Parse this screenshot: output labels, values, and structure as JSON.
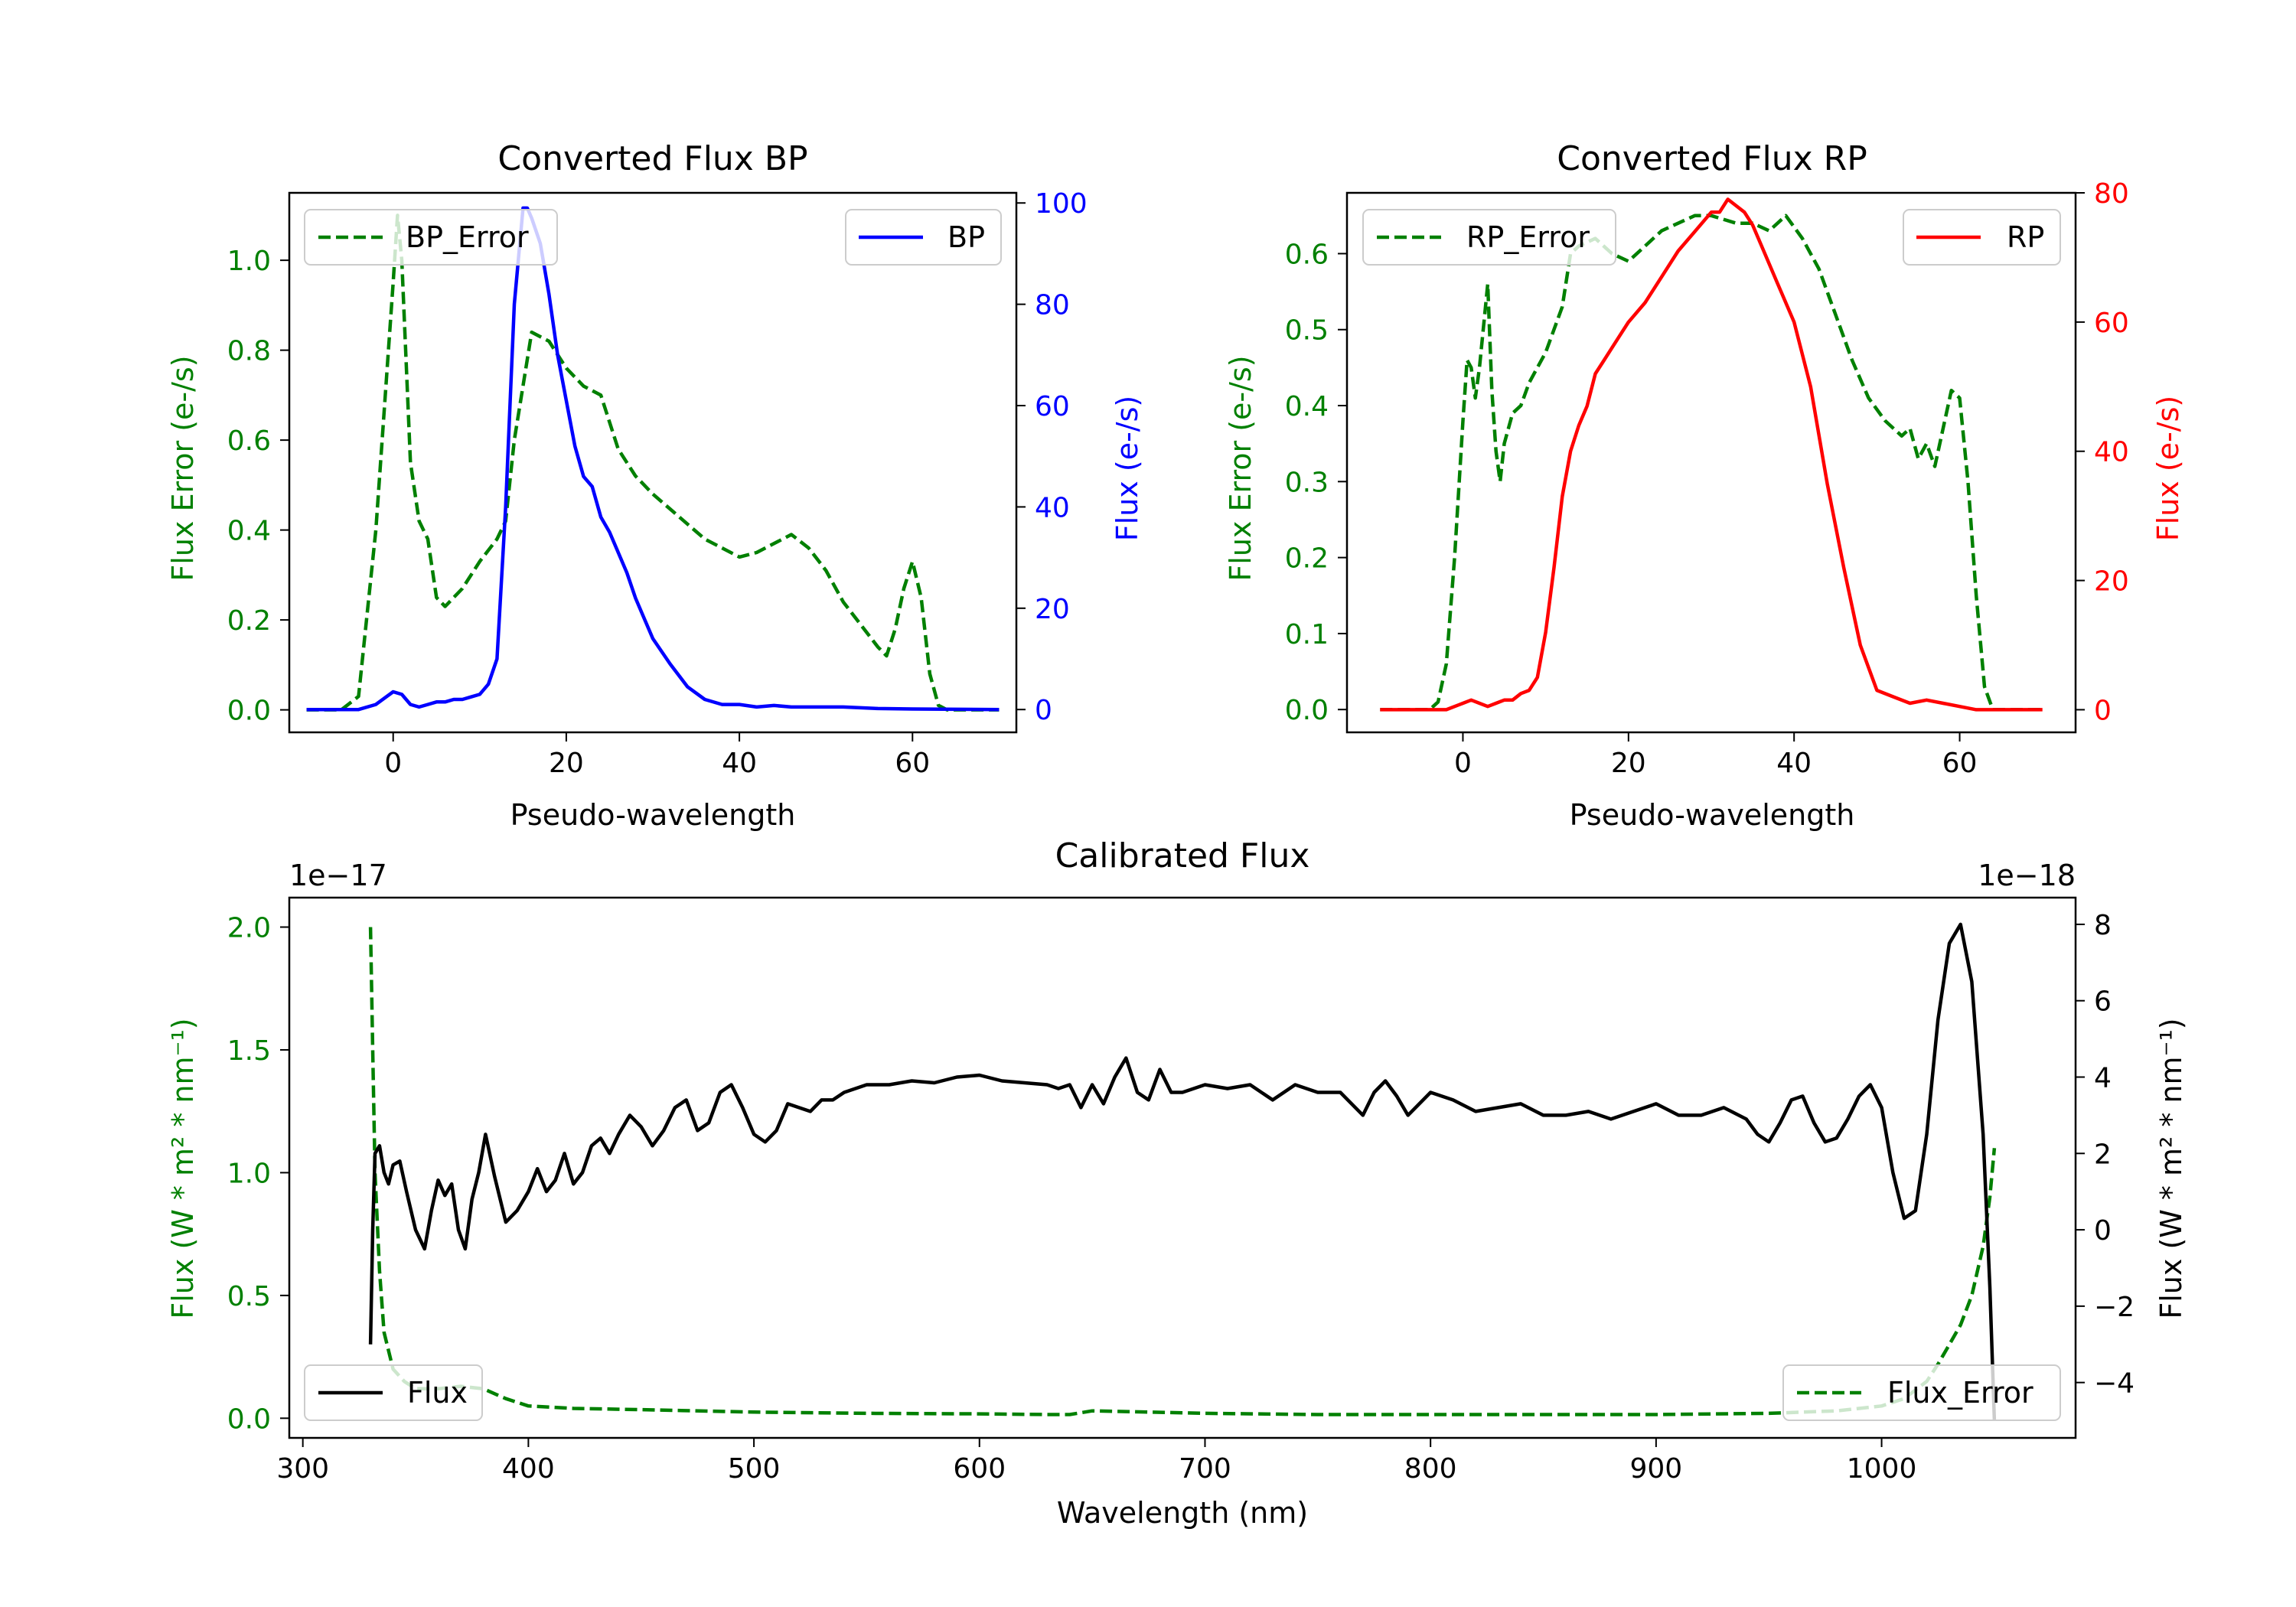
{
  "colors": {
    "green": "#008000",
    "blue": "#0000ff",
    "red": "#ff0000",
    "black": "#000000"
  },
  "chart_data": [
    {
      "id": "bp",
      "type": "line",
      "title": "Converted Flux BP",
      "xlabel": "Pseudo-wavelength",
      "ylabel_left": "Flux Error (e-/s)",
      "ylabel_right": "Flux (e-/s)",
      "xlim": [
        -12,
        72
      ],
      "ylim_left": [
        -0.05,
        1.15
      ],
      "ylim_right": [
        -4.5,
        102
      ],
      "xticks": [
        0,
        20,
        40,
        60
      ],
      "yticks_left": [
        0.0,
        0.2,
        0.4,
        0.6,
        0.8,
        1.0
      ],
      "yticks_left_labels": [
        "0.0",
        "0.2",
        "0.4",
        "0.6",
        "0.8",
        "1.0"
      ],
      "yticks_right": [
        0,
        20,
        40,
        60,
        80,
        100
      ],
      "legend_left": {
        "label": "BP_Error",
        "position": "upper-left"
      },
      "legend_right": {
        "label": "BP",
        "position": "upper-right"
      },
      "series": [
        {
          "name": "BP_Error",
          "axis": "left",
          "color": "#008000",
          "dash": true,
          "x": [
            -10,
            -6,
            -4,
            -2,
            0,
            0.5,
            1,
            2,
            3,
            4,
            5,
            6,
            8,
            10,
            12,
            13,
            14,
            16,
            18,
            20,
            22,
            24,
            26,
            28,
            30,
            33,
            36,
            38,
            40,
            42,
            44,
            46,
            48,
            50,
            52,
            54,
            56,
            57,
            58,
            59,
            60,
            61,
            62,
            63,
            64,
            66,
            70
          ],
          "y": [
            0.0,
            0.0,
            0.03,
            0.4,
            0.95,
            1.1,
            1.0,
            0.55,
            0.42,
            0.38,
            0.25,
            0.23,
            0.27,
            0.33,
            0.38,
            0.42,
            0.6,
            0.84,
            0.82,
            0.76,
            0.72,
            0.7,
            0.58,
            0.52,
            0.48,
            0.43,
            0.38,
            0.36,
            0.34,
            0.35,
            0.37,
            0.39,
            0.36,
            0.31,
            0.24,
            0.19,
            0.14,
            0.12,
            0.18,
            0.27,
            0.33,
            0.25,
            0.08,
            0.01,
            0.0,
            0.0,
            0.0
          ]
        },
        {
          "name": "BP",
          "axis": "right",
          "color": "#0000ff",
          "dash": false,
          "x": [
            -10,
            -4,
            -2,
            0,
            1,
            2,
            3,
            4,
            5,
            6,
            7,
            8,
            9,
            10,
            11,
            12,
            13,
            14,
            15,
            15.5,
            16,
            17,
            18,
            19,
            20,
            21,
            22,
            23,
            24,
            25,
            26,
            27,
            28,
            29,
            30,
            32,
            34,
            36,
            38,
            40,
            42,
            44,
            46,
            48,
            52,
            56,
            60,
            70
          ],
          "y": [
            0,
            0,
            1,
            3.5,
            3,
            1,
            0.5,
            1,
            1.5,
            1.5,
            2,
            2,
            2.5,
            3,
            5,
            10,
            40,
            80,
            99,
            99,
            97,
            92,
            82,
            70,
            61,
            52,
            46,
            44,
            38,
            35,
            31,
            27,
            22,
            18,
            14,
            9,
            4.5,
            2,
            1,
            1,
            0.5,
            0.8,
            0.5,
            0.5,
            0.5,
            0.2,
            0.1,
            0
          ]
        }
      ]
    },
    {
      "id": "rp",
      "type": "line",
      "title": "Converted Flux RP",
      "xlabel": "Pseudo-wavelength",
      "ylabel_left": "Flux Error (e-/s)",
      "ylabel_right": "Flux (e-/s)",
      "xlim": [
        -14,
        74
      ],
      "ylim_left": [
        -0.03,
        0.68
      ],
      "ylim_right": [
        -3.5,
        80
      ],
      "xticks": [
        0,
        20,
        40,
        60
      ],
      "yticks_left": [
        0.0,
        0.1,
        0.2,
        0.3,
        0.4,
        0.5,
        0.6
      ],
      "yticks_left_labels": [
        "0.0",
        "0.1",
        "0.2",
        "0.3",
        "0.4",
        "0.5",
        "0.6"
      ],
      "yticks_right": [
        0,
        20,
        40,
        60,
        80
      ],
      "legend_left": {
        "label": "RP_Error",
        "position": "upper-left"
      },
      "legend_right": {
        "label": "RP",
        "position": "upper-right"
      },
      "series": [
        {
          "name": "RP_Error",
          "axis": "left",
          "color": "#008000",
          "dash": true,
          "x": [
            -10,
            -4,
            -3,
            -2,
            -1,
            0,
            0.5,
            1,
            1.5,
            2,
            3,
            3.5,
            4,
            4.5,
            5,
            6,
            7,
            8,
            10,
            12,
            13,
            14,
            16,
            18,
            20,
            22,
            24,
            26,
            28,
            30,
            33,
            35,
            37,
            39,
            41,
            43,
            45,
            47,
            49,
            51,
            53,
            54,
            55,
            56,
            57,
            58,
            59,
            60,
            61,
            62,
            63,
            64,
            66,
            70
          ],
          "y": [
            0.0,
            0.0,
            0.01,
            0.06,
            0.2,
            0.38,
            0.46,
            0.45,
            0.41,
            0.45,
            0.56,
            0.42,
            0.34,
            0.3,
            0.35,
            0.39,
            0.4,
            0.43,
            0.47,
            0.53,
            0.6,
            0.61,
            0.62,
            0.6,
            0.59,
            0.61,
            0.63,
            0.64,
            0.65,
            0.65,
            0.64,
            0.64,
            0.63,
            0.65,
            0.62,
            0.58,
            0.52,
            0.46,
            0.41,
            0.38,
            0.36,
            0.37,
            0.33,
            0.35,
            0.32,
            0.37,
            0.42,
            0.41,
            0.3,
            0.15,
            0.03,
            0.0,
            0.0,
            0.0
          ]
        },
        {
          "name": "RP",
          "axis": "right",
          "color": "#ff0000",
          "dash": false,
          "x": [
            -10,
            -2,
            0,
            1,
            2,
            3,
            4,
            5,
            6,
            7,
            8,
            9,
            10,
            11,
            12,
            13,
            14,
            15,
            16,
            17,
            18,
            19,
            20,
            22,
            24,
            26,
            28,
            30,
            31,
            32,
            33,
            34,
            35,
            36,
            38,
            40,
            42,
            44,
            46,
            48,
            50,
            52,
            54,
            56,
            58,
            60,
            62,
            64,
            70
          ],
          "y": [
            0,
            0,
            1,
            1.5,
            1,
            0.5,
            1,
            1.5,
            1.5,
            2.5,
            3,
            5,
            12,
            22,
            33,
            40,
            44,
            47,
            52,
            54,
            56,
            58,
            60,
            63,
            67,
            71,
            74,
            77,
            77,
            79,
            78,
            77,
            75,
            72,
            66,
            60,
            50,
            35,
            22,
            10,
            3,
            2,
            1,
            1.5,
            1,
            0.5,
            0,
            0,
            0
          ]
        }
      ]
    },
    {
      "id": "cal",
      "type": "line",
      "title": "Calibrated Flux",
      "xlabel": "Wavelength (nm)",
      "ylabel_left": "Flux (W * m² * nm⁻¹)",
      "ylabel_right": "Flux (W * m² * nm⁻¹)",
      "offset_left": "1e−17",
      "offset_right": "1e−18",
      "xlim": [
        294,
        1086
      ],
      "ylim_left": [
        -0.08,
        2.12
      ],
      "ylim_right": [
        -5.45,
        8.7
      ],
      "xticks": [
        300,
        400,
        500,
        600,
        700,
        800,
        900,
        1000
      ],
      "yticks_left": [
        0.0,
        0.5,
        1.0,
        1.5,
        2.0
      ],
      "yticks_left_labels": [
        "0.0",
        "0.5",
        "1.0",
        "1.5",
        "2.0"
      ],
      "yticks_right": [
        -4,
        -2,
        0,
        2,
        4,
        6,
        8
      ],
      "yticks_right_labels": [
        "−4",
        "−2",
        "0",
        "2",
        "4",
        "6",
        "8"
      ],
      "legend_left": {
        "label": "Flux",
        "position": "lower-left"
      },
      "legend_right": {
        "label": "Flux_Error",
        "position": "lower-right"
      },
      "series": [
        {
          "name": "Flux_Error",
          "axis": "left",
          "color": "#008000",
          "dash": true,
          "x": [
            330,
            331,
            332,
            334,
            336,
            340,
            345,
            350,
            360,
            370,
            380,
            390,
            400,
            420,
            450,
            500,
            550,
            600,
            630,
            640,
            650,
            700,
            750,
            800,
            850,
            900,
            950,
            980,
            1000,
            1010,
            1020,
            1025,
            1030,
            1035,
            1040,
            1045,
            1048,
            1050
          ],
          "y": [
            2.0,
            1.5,
            1.0,
            0.6,
            0.35,
            0.2,
            0.15,
            0.12,
            0.12,
            0.13,
            0.12,
            0.08,
            0.05,
            0.04,
            0.035,
            0.025,
            0.02,
            0.018,
            0.015,
            0.015,
            0.03,
            0.02,
            0.015,
            0.015,
            0.015,
            0.015,
            0.02,
            0.03,
            0.05,
            0.08,
            0.15,
            0.22,
            0.3,
            0.38,
            0.5,
            0.7,
            0.9,
            1.1
          ]
        },
        {
          "name": "Flux",
          "axis": "right",
          "color": "#000000",
          "dash": false,
          "x": [
            330,
            331,
            332,
            334,
            336,
            338,
            340,
            343,
            346,
            350,
            354,
            357,
            360,
            363,
            366,
            369,
            372,
            375,
            378,
            381,
            385,
            390,
            395,
            400,
            404,
            408,
            412,
            416,
            420,
            424,
            428,
            432,
            436,
            440,
            445,
            450,
            455,
            460,
            465,
            470,
            475,
            480,
            485,
            490,
            495,
            500,
            505,
            510,
            515,
            520,
            525,
            530,
            535,
            540,
            550,
            560,
            570,
            580,
            590,
            600,
            610,
            620,
            630,
            635,
            640,
            645,
            650,
            655,
            660,
            665,
            670,
            675,
            680,
            685,
            690,
            700,
            710,
            720,
            730,
            740,
            750,
            760,
            770,
            775,
            780,
            785,
            790,
            800,
            810,
            820,
            830,
            840,
            850,
            860,
            870,
            880,
            890,
            900,
            910,
            920,
            930,
            940,
            945,
            950,
            955,
            960,
            965,
            970,
            975,
            980,
            985,
            990,
            995,
            1000,
            1005,
            1010,
            1015,
            1020,
            1025,
            1030,
            1035,
            1040,
            1045,
            1048,
            1050
          ],
          "y": [
            -3,
            0,
            2,
            2.2,
            1.5,
            1.2,
            1.7,
            1.8,
            1.0,
            0.0,
            -0.5,
            0.5,
            1.3,
            0.9,
            1.2,
            0.0,
            -0.5,
            0.8,
            1.5,
            2.5,
            1.4,
            0.2,
            0.5,
            1.0,
            1.6,
            1.0,
            1.3,
            2.0,
            1.2,
            1.5,
            2.2,
            2.4,
            2.0,
            2.5,
            3.0,
            2.7,
            2.2,
            2.6,
            3.2,
            3.4,
            2.6,
            2.8,
            3.6,
            3.8,
            3.2,
            2.5,
            2.3,
            2.6,
            3.3,
            3.2,
            3.1,
            3.4,
            3.4,
            3.6,
            3.8,
            3.8,
            3.9,
            3.85,
            4.0,
            4.05,
            3.9,
            3.85,
            3.8,
            3.7,
            3.8,
            3.2,
            3.8,
            3.3,
            4.0,
            4.5,
            3.6,
            3.4,
            4.2,
            3.6,
            3.6,
            3.8,
            3.7,
            3.8,
            3.4,
            3.8,
            3.6,
            3.6,
            3.0,
            3.6,
            3.9,
            3.5,
            3.0,
            3.6,
            3.4,
            3.1,
            3.2,
            3.3,
            3.0,
            3.0,
            3.1,
            2.9,
            3.1,
            3.3,
            3.0,
            3.0,
            3.2,
            2.9,
            2.5,
            2.3,
            2.8,
            3.4,
            3.5,
            2.8,
            2.3,
            2.4,
            2.9,
            3.5,
            3.8,
            3.2,
            1.5,
            0.3,
            0.5,
            2.5,
            5.5,
            7.5,
            8.0,
            6.5,
            2.5,
            -1.5,
            -5.0
          ]
        }
      ]
    }
  ]
}
